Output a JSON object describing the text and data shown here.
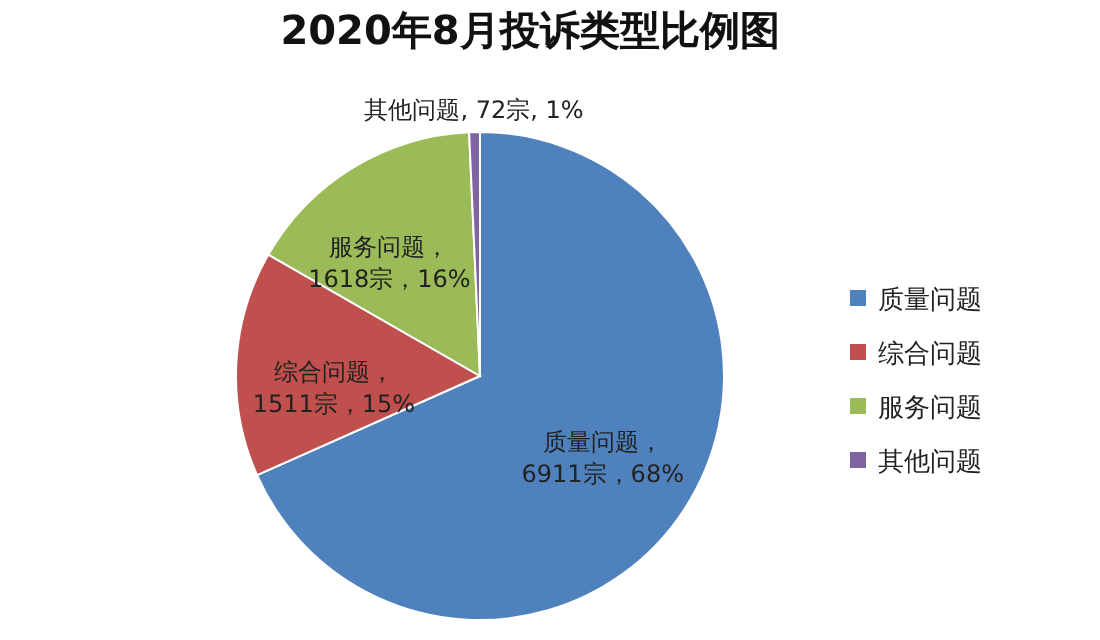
{
  "chart_data": {
    "type": "pie",
    "title": "2020年8月投诉类型比例图",
    "categories": [
      "质量问题",
      "综合问题",
      "服务问题",
      "其他问题"
    ],
    "values": [
      6911,
      1511,
      1618,
      72
    ],
    "colors": [
      "#4f81bd",
      "#c0504d",
      "#9bbb59",
      "#8064a2"
    ],
    "value_labels": [
      "质量问题，\n6911宗，68%",
      "综合问题，\n1511宗，15%",
      "服务问题，\n1618宗，16%",
      "其他问题, 72宗, 1%"
    ],
    "legend": "right"
  }
}
